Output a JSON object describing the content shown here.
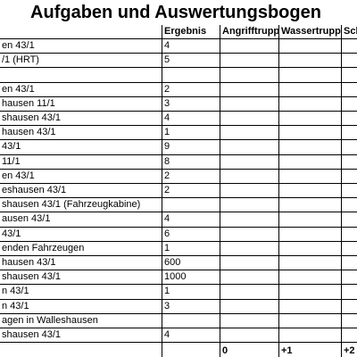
{
  "header": {
    "title": "Aufgaben und Auswertungsbogen"
  },
  "table": {
    "columns": [
      "Ergebnis",
      "Angrifftrupp",
      "Wassertrupp",
      "Sch"
    ],
    "rows": [
      {
        "label": "en 43/1",
        "result": 4
      },
      {
        "label": "/1 (HRT)",
        "result": 5
      },
      {},
      {
        "label": "en 43/1",
        "result": 2
      },
      {
        "label": "hausen 11/1",
        "result": 3
      },
      {
        "label": "shausen 43/1",
        "result": 4
      },
      {
        "label": "hausen 43/1",
        "result": 1
      },
      {
        "label": "43/1",
        "result": 9
      },
      {
        "label": "11/1",
        "result": 8
      },
      {
        "label": "en 43/1",
        "result": 2
      },
      {
        "label": "eshausen 43/1",
        "result": 2
      },
      {
        "label": "shausen 43/1 (Fahrzeugkabine)"
      },
      {
        "label": "ausen 43/1",
        "result": 4
      },
      {
        "label": "43/1",
        "result": 6
      },
      {
        "label": "enden Fahrzeugen",
        "result": 1
      },
      {
        "label": "hausen 43/1",
        "result": 600
      },
      {
        "label": "shausen 43/1",
        "result": 1000
      },
      {
        "label": "n 43/1",
        "result": 1
      },
      {
        "label": "n 43/1",
        "result": 3
      },
      {
        "label": "agen in Walleshausen"
      },
      {
        "label": "shausen 43/1",
        "result": 4
      }
    ],
    "footer": [
      0,
      "+1",
      "+2"
    ]
  }
}
